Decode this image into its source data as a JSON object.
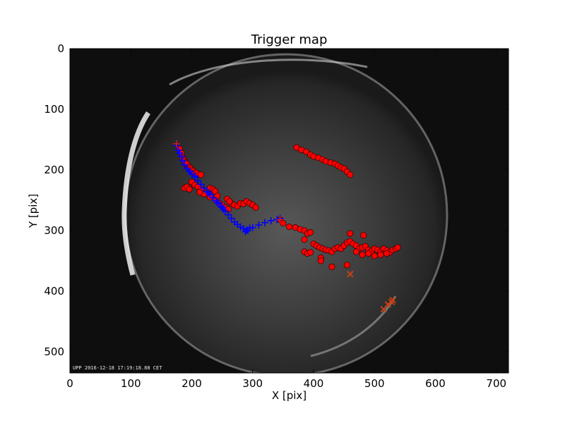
{
  "chart_data": {
    "type": "scatter",
    "title": "Trigger map",
    "xlabel": "X [pix]",
    "ylabel": "Y [pix]",
    "xlim": [
      0,
      720
    ],
    "ylim": [
      535,
      0
    ],
    "x_ticks": [
      0,
      100,
      200,
      300,
      400,
      500,
      600,
      700
    ],
    "y_ticks": [
      0,
      100,
      200,
      300,
      400,
      500
    ],
    "grid": false,
    "background": "all-sky camera image (fisheye, night sky)",
    "stamp_text": "UPP 2016-12-18 17:19:18.88 CET",
    "series": [
      {
        "marker": "circle",
        "color": "#ff0000",
        "points": [
          [
            180,
            165
          ],
          [
            183,
            172
          ],
          [
            185,
            180
          ],
          [
            188,
            185
          ],
          [
            190,
            188
          ],
          [
            192,
            190
          ],
          [
            195,
            195
          ],
          [
            198,
            197
          ],
          [
            200,
            200
          ],
          [
            203,
            202
          ],
          [
            205,
            205
          ],
          [
            208,
            205
          ],
          [
            212,
            207
          ],
          [
            215,
            208
          ],
          [
            200,
            220
          ],
          [
            205,
            225
          ],
          [
            210,
            228
          ],
          [
            215,
            232
          ],
          [
            220,
            238
          ],
          [
            225,
            240
          ],
          [
            230,
            230
          ],
          [
            235,
            232
          ],
          [
            240,
            250
          ],
          [
            245,
            255
          ],
          [
            250,
            258
          ],
          [
            255,
            262
          ],
          [
            260,
            265
          ],
          [
            265,
            255
          ],
          [
            270,
            258
          ],
          [
            275,
            260
          ],
          [
            280,
            255
          ],
          [
            285,
            256
          ],
          [
            290,
            252
          ],
          [
            295,
            255
          ],
          [
            300,
            258
          ],
          [
            305,
            262
          ],
          [
            220,
            240
          ],
          [
            213,
            237
          ],
          [
            188,
            230
          ],
          [
            192,
            228
          ],
          [
            196,
            232
          ],
          [
            258,
            248
          ],
          [
            262,
            252
          ],
          [
            238,
            235
          ],
          [
            242,
            243
          ],
          [
            230,
            245
          ],
          [
            345,
            282
          ],
          [
            350,
            288
          ],
          [
            360,
            294
          ],
          [
            370,
            295
          ],
          [
            378,
            298
          ],
          [
            385,
            300
          ],
          [
            390,
            305
          ],
          [
            395,
            303
          ],
          [
            400,
            322
          ],
          [
            405,
            325
          ],
          [
            410,
            328
          ],
          [
            415,
            330
          ],
          [
            420,
            332
          ],
          [
            425,
            333
          ],
          [
            430,
            335
          ],
          [
            435,
            330
          ],
          [
            440,
            328
          ],
          [
            445,
            330
          ],
          [
            450,
            325
          ],
          [
            455,
            320
          ],
          [
            460,
            318
          ],
          [
            465,
            322
          ],
          [
            470,
            325
          ],
          [
            475,
            330
          ],
          [
            480,
            328
          ],
          [
            485,
            326
          ],
          [
            490,
            332
          ],
          [
            495,
            334
          ],
          [
            500,
            330
          ],
          [
            505,
            332
          ],
          [
            510,
            335
          ],
          [
            515,
            330
          ],
          [
            520,
            333
          ],
          [
            525,
            336
          ],
          [
            530,
            332
          ],
          [
            535,
            330
          ],
          [
            538,
            328
          ],
          [
            460,
            305
          ],
          [
            470,
            335
          ],
          [
            480,
            340
          ],
          [
            490,
            338
          ],
          [
            500,
            342
          ],
          [
            510,
            340
          ],
          [
            520,
            338
          ],
          [
            385,
            335
          ],
          [
            390,
            338
          ],
          [
            395,
            336
          ],
          [
            412,
            345
          ],
          [
            412,
            350
          ],
          [
            430,
            360
          ],
          [
            455,
            357
          ],
          [
            385,
            315
          ],
          [
            482,
            308
          ],
          [
            372,
            163
          ],
          [
            380,
            167
          ],
          [
            388,
            170
          ],
          [
            395,
            175
          ],
          [
            400,
            178
          ],
          [
            408,
            180
          ],
          [
            415,
            183
          ],
          [
            420,
            186
          ],
          [
            428,
            188
          ],
          [
            435,
            190
          ],
          [
            440,
            193
          ],
          [
            445,
            196
          ],
          [
            450,
            198
          ],
          [
            455,
            203
          ],
          [
            460,
            208
          ]
        ]
      },
      {
        "marker": "plus",
        "color": "#0000ff",
        "points": [
          [
            175,
            160
          ],
          [
            178,
            168
          ],
          [
            180,
            172
          ],
          [
            183,
            178
          ],
          [
            185,
            185
          ],
          [
            188,
            192
          ],
          [
            192,
            198
          ],
          [
            196,
            202
          ],
          [
            200,
            207
          ],
          [
            205,
            212
          ],
          [
            210,
            218
          ],
          [
            215,
            224
          ],
          [
            220,
            230
          ],
          [
            225,
            236
          ],
          [
            230,
            241
          ],
          [
            235,
            246
          ],
          [
            240,
            251
          ],
          [
            245,
            256
          ],
          [
            250,
            262
          ],
          [
            255,
            268
          ],
          [
            260,
            274
          ],
          [
            265,
            280
          ],
          [
            270,
            286
          ],
          [
            275,
            290
          ],
          [
            280,
            294
          ],
          [
            285,
            297
          ],
          [
            290,
            299
          ],
          [
            295,
            296
          ],
          [
            300,
            295
          ],
          [
            310,
            291
          ],
          [
            320,
            287
          ],
          [
            330,
            284
          ],
          [
            340,
            282
          ],
          [
            345,
            280
          ],
          [
            248,
            260
          ],
          [
            288,
            302
          ],
          [
            292,
            300
          ],
          [
            252,
            265
          ],
          [
            242,
            254
          ],
          [
            228,
            238
          ],
          [
            205,
            210
          ],
          [
            197,
            203
          ]
        ]
      },
      {
        "marker": "plus",
        "color": "#c81e1e",
        "points": [
          [
            175,
            157
          ],
          [
            345,
            282
          ]
        ]
      },
      {
        "marker": "x",
        "color": "#c84014",
        "points": [
          [
            460,
            372
          ],
          [
            515,
            430
          ],
          [
            522,
            422
          ],
          [
            528,
            418
          ],
          [
            530,
            415
          ]
        ]
      }
    ]
  }
}
